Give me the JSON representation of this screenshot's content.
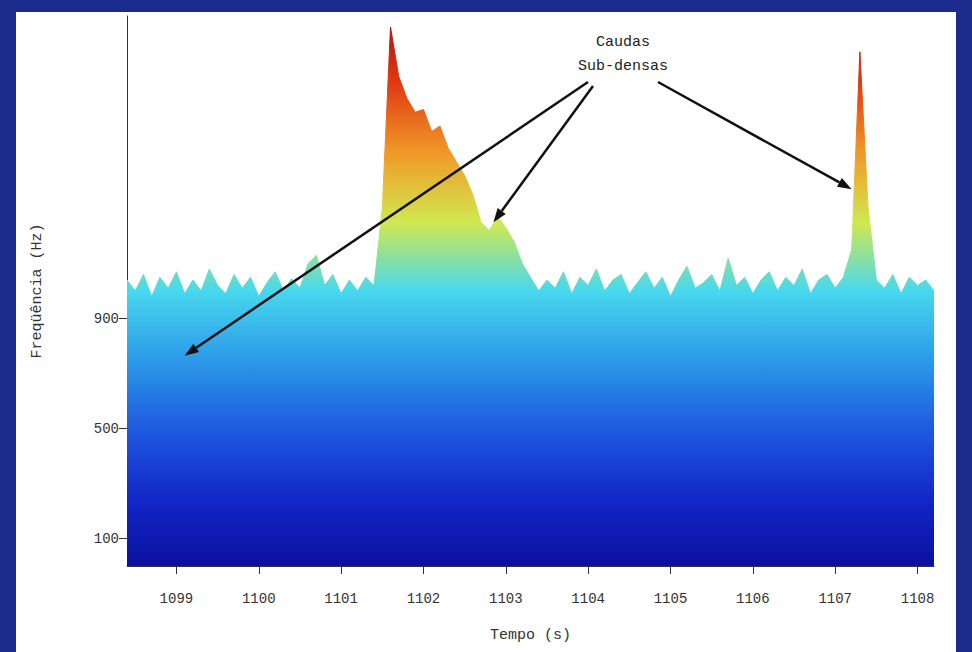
{
  "chart_data": {
    "type": "area",
    "x_label": "Tempo (s)",
    "y_label": "Freqüência (Hz)",
    "annotation": {
      "text": "Caudas Sub-densas",
      "points": [
        [
          1099.1,
          765
        ],
        [
          1102.85,
          1250
        ],
        [
          1107.2,
          1370
        ]
      ]
    },
    "x": [
      1098.4,
      1098.5,
      1098.6,
      1098.7,
      1098.8,
      1098.9,
      1099.0,
      1099.1,
      1099.2,
      1099.3,
      1099.4,
      1099.5,
      1099.6,
      1099.7,
      1099.8,
      1099.9,
      1100.0,
      1100.1,
      1100.2,
      1100.3,
      1100.4,
      1100.5,
      1100.6,
      1100.7,
      1100.8,
      1100.9,
      1101.0,
      1101.1,
      1101.2,
      1101.3,
      1101.4,
      1101.5,
      1101.6,
      1101.7,
      1101.8,
      1101.9,
      1102.0,
      1102.1,
      1102.2,
      1102.3,
      1102.4,
      1102.5,
      1102.6,
      1102.7,
      1102.8,
      1102.9,
      1103.0,
      1103.1,
      1103.2,
      1103.3,
      1103.4,
      1103.5,
      1103.6,
      1103.7,
      1103.8,
      1103.9,
      1104.0,
      1104.1,
      1104.2,
      1104.3,
      1104.4,
      1104.5,
      1104.6,
      1104.7,
      1104.8,
      1104.9,
      1105.0,
      1105.1,
      1105.2,
      1105.3,
      1105.4,
      1105.5,
      1105.6,
      1105.7,
      1105.8,
      1105.9,
      1106.0,
      1106.1,
      1106.2,
      1106.3,
      1106.4,
      1106.5,
      1106.6,
      1106.7,
      1106.8,
      1106.9,
      1107.0,
      1107.1,
      1107.2,
      1107.3,
      1107.4,
      1107.5,
      1107.6,
      1107.7,
      1107.8,
      1107.9,
      1108.0,
      1108.1,
      1108.2
    ],
    "values": [
      1040,
      1000,
      1060,
      980,
      1050,
      1010,
      1070,
      990,
      1040,
      1000,
      1080,
      1020,
      990,
      1060,
      1010,
      1050,
      980,
      1030,
      1070,
      1000,
      1045,
      1010,
      1100,
      1130,
      1020,
      1060,
      990,
      1040,
      1000,
      1050,
      1020,
      1300,
      1960,
      1780,
      1700,
      1650,
      1660,
      1580,
      1600,
      1520,
      1470,
      1420,
      1350,
      1250,
      1220,
      1270,
      1230,
      1180,
      1100,
      1050,
      1000,
      1040,
      1010,
      1070,
      990,
      1050,
      1020,
      1080,
      1000,
      1040,
      1060,
      990,
      1030,
      1070,
      1010,
      1050,
      980,
      1040,
      1090,
      1010,
      1030,
      1060,
      1000,
      1120,
      1020,
      1050,
      990,
      1040,
      1070,
      1000,
      1050,
      1020,
      1080,
      990,
      1040,
      1060,
      1010,
      1050,
      1150,
      1870,
      1300,
      1040,
      1010,
      1060,
      990,
      1050,
      1020,
      1040,
      1000
    ],
    "xlim": [
      1098.4,
      1108.2
    ],
    "xticks": [
      1099,
      1100,
      1101,
      1102,
      1103,
      1104,
      1105,
      1106,
      1107,
      1108
    ],
    "ylim": [
      0,
      2000
    ],
    "yticks": [
      100,
      500,
      900
    ],
    "grid": false
  }
}
